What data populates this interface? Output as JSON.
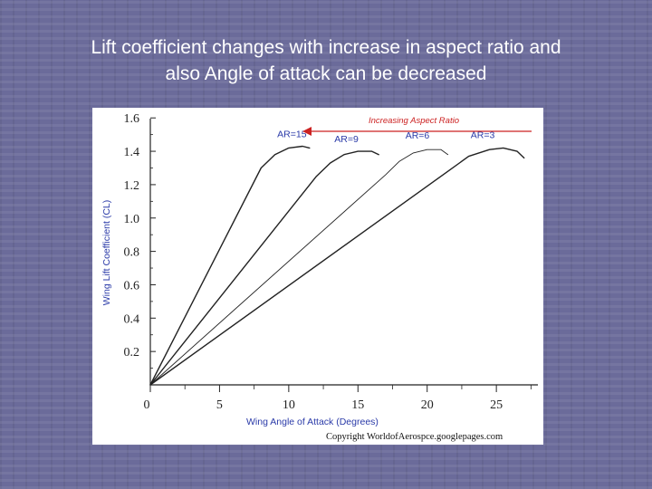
{
  "slide": {
    "title_line1": "Lift coefficient changes with increase in  aspect ratio and",
    "title_line2": "also Angle of attack can be decreased"
  },
  "chart_data": {
    "type": "line",
    "title": "",
    "xlabel": "Wing Angle of Attack (Degrees)",
    "ylabel": "Wing Lift Coefficient (CL)",
    "xlim": [
      0,
      28
    ],
    "ylim": [
      0,
      1.65
    ],
    "x_ticks": [
      0,
      5,
      10,
      15,
      20,
      25
    ],
    "y_ticks": [
      0.2,
      0.4,
      0.6,
      0.8,
      1.0,
      1.2,
      1.4,
      1.6
    ],
    "grid": false,
    "series": [
      {
        "name": "AR=15",
        "points": [
          [
            0,
            0
          ],
          [
            8,
            1.3
          ],
          [
            9,
            1.38
          ],
          [
            10,
            1.42
          ],
          [
            11,
            1.43
          ],
          [
            11.5,
            1.42
          ]
        ]
      },
      {
        "name": "AR=9",
        "points": [
          [
            0,
            0
          ],
          [
            12,
            1.25
          ],
          [
            13,
            1.33
          ],
          [
            14,
            1.38
          ],
          [
            15,
            1.4
          ],
          [
            16,
            1.4
          ],
          [
            16.5,
            1.38
          ]
        ]
      },
      {
        "name": "AR=6",
        "points": [
          [
            0,
            0
          ],
          [
            17,
            1.26
          ],
          [
            18,
            1.34
          ],
          [
            19,
            1.39
          ],
          [
            20,
            1.41
          ],
          [
            21,
            1.41
          ],
          [
            21.5,
            1.38
          ]
        ]
      },
      {
        "name": "AR=3",
        "points": [
          [
            0,
            0
          ],
          [
            21.5,
            1.28
          ],
          [
            23,
            1.37
          ],
          [
            24.5,
            1.41
          ],
          [
            25.5,
            1.42
          ],
          [
            26.5,
            1.4
          ],
          [
            27,
            1.36
          ]
        ]
      }
    ],
    "annotation": "Increasing Aspect Ratio",
    "copyright": "Copyright WorldofAerospce.googlepages.com",
    "colors": {
      "curve": "#222222",
      "text_accent": "#2a3aa8",
      "arrow": "#cc2222"
    }
  }
}
